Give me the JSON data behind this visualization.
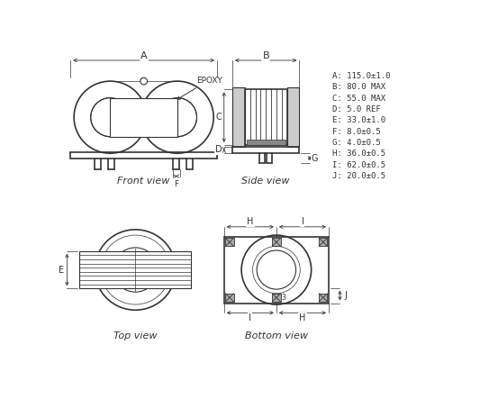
{
  "line_color": "#333333",
  "specs": [
    "A: 115.0±1.0",
    "B: 80.0 MAX",
    "C: 55.0 MAX",
    "D: 5.0 REF",
    "E: 33.0±1.0",
    "F: 8.0±0.5",
    "G: 4.0±0.5",
    "H: 36.0±0.5",
    "I: 62.0±0.5",
    "J: 20.0±0.5"
  ],
  "view_labels": [
    "Front view",
    "Side view",
    "Top view",
    "Bottom view"
  ]
}
